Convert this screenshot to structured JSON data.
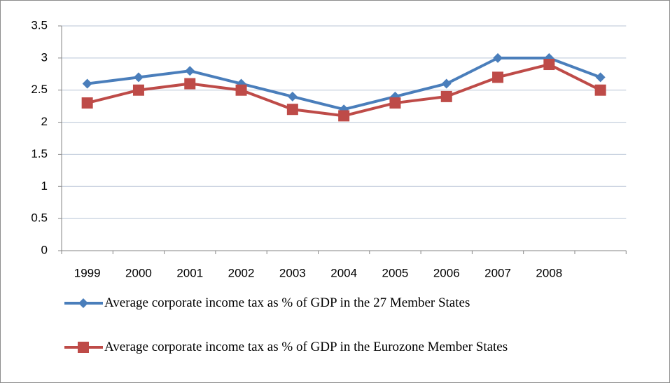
{
  "chart_data": {
    "type": "line",
    "categories": [
      "1999",
      "2000",
      "2001",
      "2002",
      "2003",
      "2004",
      "2005",
      "2006",
      "2007",
      "2008",
      null
    ],
    "series": [
      {
        "name": "Average corporate income tax as % of GDP in the 27 Member States",
        "color": "#4a7ebb",
        "marker": "diamond",
        "values": [
          2.6,
          2.7,
          2.8,
          2.6,
          2.4,
          2.2,
          2.4,
          2.6,
          3.0,
          3.0,
          2.7
        ]
      },
      {
        "name": "Average corporate income tax as % of GDP in the Eurozone Member States",
        "color": "#be4b48",
        "marker": "square",
        "values": [
          2.3,
          2.5,
          2.6,
          2.5,
          2.2,
          2.1,
          2.3,
          2.4,
          2.7,
          2.9,
          2.5
        ]
      }
    ],
    "ylim": [
      0,
      3.5
    ],
    "yticks": [
      0,
      0.5,
      1,
      1.5,
      2,
      2.5,
      3,
      3.5
    ],
    "grid": true
  }
}
